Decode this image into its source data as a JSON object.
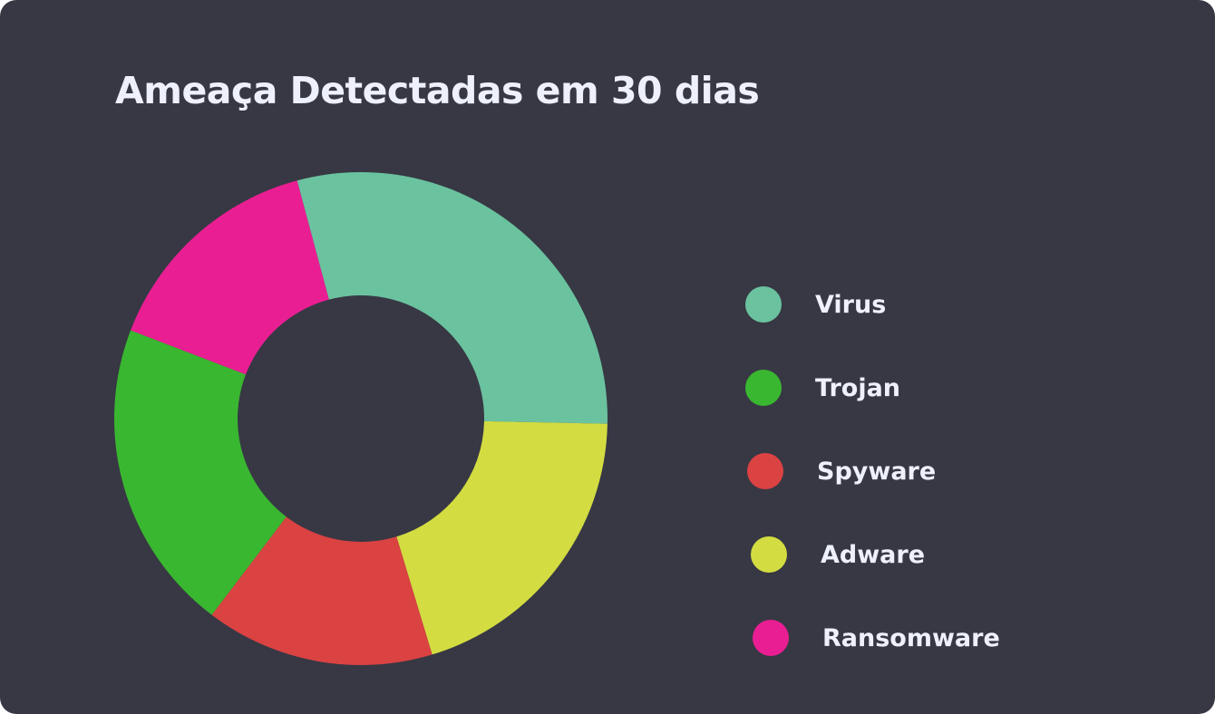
{
  "chart_data": {
    "type": "pie",
    "variant": "donut",
    "title": "Ameaça Detectadas em 30 dias",
    "categories": [
      "Virus",
      "Trojan",
      "Spyware",
      "Adware",
      "Ransomware"
    ],
    "values": [
      29.5,
      20.5,
      15,
      20,
      15
    ],
    "colors": [
      "#6bc29f",
      "#3ab730",
      "#db4242",
      "#d3dc41",
      "#ea1e93"
    ],
    "slice_order_clockwise_from_top": [
      "Virus",
      "Adware",
      "Spyware",
      "Trojan",
      "Ransomware"
    ],
    "legend_position": "right"
  }
}
